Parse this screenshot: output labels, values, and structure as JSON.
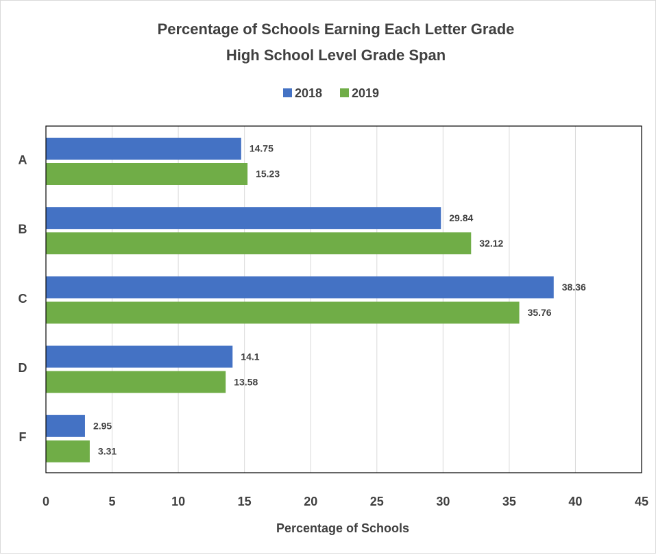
{
  "chart_data": {
    "type": "hbar",
    "title": "Percentage of Schools Earning Each Letter Grade",
    "subtitle": "High School Level Grade Span",
    "x_label": "Percentage of Schools",
    "categories": [
      "A",
      "B",
      "C",
      "D",
      "F"
    ],
    "series": [
      {
        "name": "2018",
        "color": "#4472c4",
        "values": [
          14.75,
          29.84,
          38.36,
          14.1,
          2.95
        ]
      },
      {
        "name": "2019",
        "color": "#70ad47",
        "values": [
          15.23,
          32.12,
          35.76,
          13.58,
          3.31
        ]
      }
    ],
    "xlim": [
      0,
      45
    ],
    "xticks": [
      0,
      5,
      10,
      15,
      20,
      25,
      30,
      35,
      40,
      45
    ],
    "grid": true,
    "legend": "top"
  }
}
